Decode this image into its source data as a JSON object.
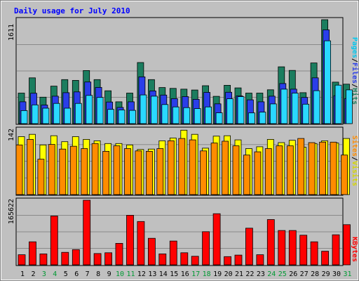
{
  "chart_data": [
    {
      "type": "bar",
      "title": "Daily usage for July 2010",
      "categories": [
        "1",
        "2",
        "3",
        "4",
        "5",
        "6",
        "7",
        "8",
        "9",
        "10",
        "11",
        "12",
        "13",
        "14",
        "15",
        "16",
        "17",
        "18",
        "19",
        "20",
        "21",
        "22",
        "23",
        "24",
        "25",
        "26",
        "27",
        "28",
        "29",
        "30",
        "31"
      ],
      "weekend_days": [
        "3",
        "4",
        "10",
        "11",
        "17",
        "18",
        "24",
        "25",
        "31"
      ],
      "ylim_label": "1611",
      "ylim": [
        0,
        1611
      ],
      "series": [
        {
          "name": "Hits",
          "color": "#1b7d5f",
          "values": [
            474,
            710,
            410,
            581,
            683,
            670,
            823,
            683,
            509,
            338,
            474,
            947,
            683,
            560,
            546,
            535,
            521,
            588,
            423,
            594,
            554,
            474,
            474,
            525,
            881,
            825,
            480,
            941,
            1611,
            643,
            612
          ]
        },
        {
          "name": "Files",
          "color": "#2a3ee9",
          "values": [
            338,
            471,
            288,
            426,
            480,
            492,
            646,
            562,
            335,
            251,
            338,
            725,
            507,
            443,
            388,
            419,
            377,
            484,
            307,
            487,
            430,
            369,
            338,
            426,
            622,
            535,
            406,
            710,
            1453,
            433,
            389
          ]
        },
        {
          "name": "Pages",
          "color": "#2ad8ff",
          "values": [
            203,
            291,
            240,
            313,
            240,
            313,
            438,
            406,
            221,
            212,
            206,
            445,
            426,
            296,
            259,
            248,
            233,
            259,
            168,
            385,
            418,
            166,
            179,
            306,
            535,
            473,
            302,
            511,
            1283,
            596,
            524
          ]
        }
      ]
    },
    {
      "type": "bar",
      "ylim_label": "142",
      "ylim": [
        0,
        142
      ],
      "series": [
        {
          "name": "Visits",
          "color": "#ffff00",
          "values": [
            126,
            131,
            108,
            128,
            115,
            126,
            120,
            117,
            111,
            111,
            108,
            98,
            99,
            117,
            123,
            140,
            131,
            101,
            127,
            128,
            119,
            100,
            104,
            120,
            113,
            118,
            103,
            111,
            117,
            112,
            122
          ]
        },
        {
          "name": "Sites",
          "color": "#ff8c00",
          "values": [
            108,
            120,
            77,
            109,
            99,
            105,
            100,
            111,
            94,
            106,
            100,
            95,
            94,
            100,
            117,
            122,
            119,
            95,
            112,
            116,
            106,
            86,
            93,
            100,
            106,
            106,
            122,
            113,
            114,
            114,
            86
          ]
        }
      ]
    },
    {
      "type": "bar",
      "ylim_label": "165622",
      "ylim": [
        0,
        165622
      ],
      "series": [
        {
          "name": "KBytes",
          "color": "#ff0000",
          "values": [
            26012,
            59025,
            28010,
            125062,
            32012,
            39015,
            165622,
            29011,
            31012,
            55021,
            127049,
            111043,
            68026,
            28011,
            61024,
            31012,
            22008,
            85033,
            131051,
            21008,
            25009,
            94036,
            26010,
            116045,
            88034,
            88034,
            76029,
            59023,
            35013,
            77030,
            103040
          ]
        }
      ]
    }
  ],
  "header": {
    "title": "Daily usage for July 2010"
  },
  "labels": {
    "hits": "Hits",
    "files": "Files",
    "pages": "Pages",
    "visits": "Visits",
    "sites": "Sites",
    "kbytes": "KBytes",
    "slash": "/"
  },
  "panels": {
    "top_max": "1611",
    "mid_max": "142",
    "bot_max": "165622"
  },
  "colors": {
    "background": "#c0c0c0",
    "border": "#000000",
    "title": "#0000ff",
    "weekday_label": "#000000",
    "weekend_label": "#009933",
    "hits_label": "#1b7d5f",
    "files_label": "#2a3ee9",
    "pages_label": "#00c8f0",
    "visits_label": "#d6d600",
    "sites_label": "#ff8c00",
    "kbytes_label": "#ff0000"
  }
}
